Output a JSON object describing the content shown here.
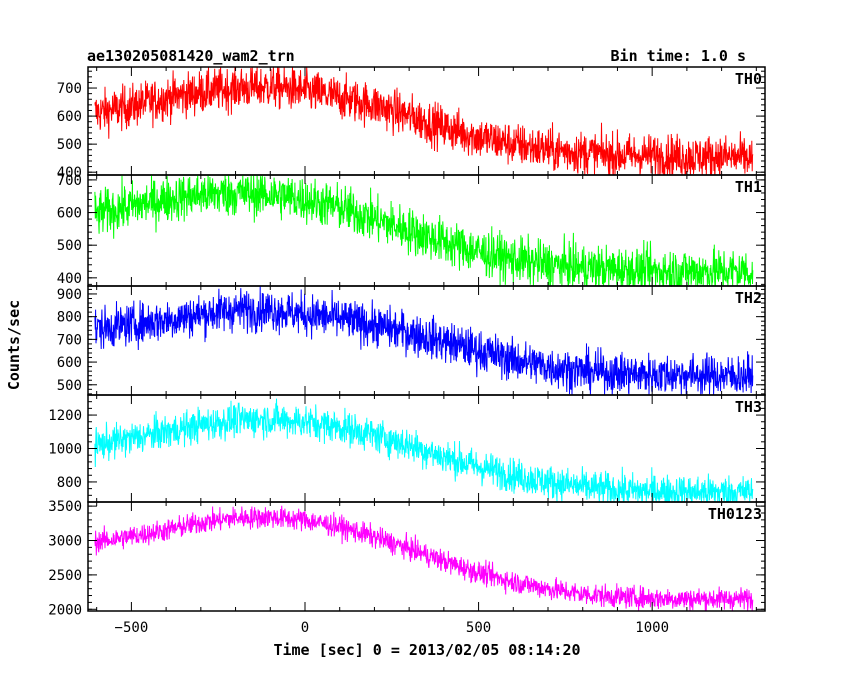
{
  "header": {
    "title": "ae130205081420_wam2_trn",
    "bin_time": "Bin time: 1.0 s"
  },
  "axes": {
    "xlabel": "Time [sec] 0 = 2013/02/05 08:14:20",
    "ylabel": "Counts/sec"
  },
  "chart_data": {
    "type": "line",
    "title": "ae130205081420_wam2_trn",
    "xlabel": "Time [sec] 0 = 2013/02/05 08:14:20",
    "ylabel": "Counts/sec",
    "xlim": [
      -625,
      1325
    ],
    "x_ticks": [
      -500,
      0,
      500,
      1000
    ],
    "x_tick_labels": [
      "−500",
      "0",
      "500",
      "1000"
    ],
    "x_range": [
      -605,
      1290
    ],
    "grid": false,
    "series": [
      {
        "name": "TH0",
        "color": "#ff0000",
        "ylim": [
          390,
          775
        ],
        "y_ticks": [
          400,
          500,
          600,
          700
        ],
        "noise": 38,
        "x": [
          -605,
          -500,
          -400,
          -300,
          -200,
          -100,
          0,
          100,
          200,
          300,
          400,
          500,
          600,
          700,
          800,
          900,
          1000,
          1100,
          1200,
          1290
        ],
        "values": [
          610,
          635,
          665,
          685,
          700,
          705,
          690,
          665,
          640,
          600,
          560,
          525,
          500,
          480,
          470,
          460,
          460,
          455,
          455,
          450
        ]
      },
      {
        "name": "TH1",
        "color": "#00ff00",
        "ylim": [
          375,
          715
        ],
        "y_ticks": [
          400,
          500,
          600,
          700
        ],
        "noise": 35,
        "x": [
          -605,
          -500,
          -400,
          -300,
          -200,
          -100,
          0,
          100,
          200,
          300,
          400,
          500,
          600,
          700,
          800,
          900,
          1000,
          1100,
          1200,
          1290
        ],
        "values": [
          595,
          620,
          640,
          655,
          660,
          655,
          640,
          615,
          580,
          545,
          510,
          480,
          455,
          440,
          430,
          425,
          420,
          420,
          420,
          420
        ]
      },
      {
        "name": "TH2",
        "color": "#0000ff",
        "ylim": [
          455,
          935
        ],
        "y_ticks": [
          500,
          600,
          700,
          800,
          900
        ],
        "noise": 45,
        "x": [
          -605,
          -500,
          -400,
          -300,
          -200,
          -100,
          0,
          100,
          200,
          300,
          400,
          500,
          600,
          700,
          800,
          900,
          1000,
          1100,
          1200,
          1290
        ],
        "values": [
          745,
          765,
          785,
          810,
          830,
          830,
          810,
          790,
          760,
          730,
          690,
          650,
          610,
          580,
          560,
          550,
          545,
          545,
          540,
          540
        ]
      },
      {
        "name": "TH3",
        "color": "#00ffff",
        "ylim": [
          680,
          1320
        ],
        "y_ticks": [
          800,
          1000,
          1200
        ],
        "noise": 50,
        "x": [
          -605,
          -500,
          -400,
          -300,
          -200,
          -100,
          0,
          100,
          200,
          300,
          400,
          500,
          600,
          700,
          800,
          900,
          1000,
          1100,
          1200,
          1290
        ],
        "values": [
          1020,
          1060,
          1100,
          1140,
          1170,
          1175,
          1160,
          1130,
          1080,
          1020,
          950,
          890,
          840,
          800,
          770,
          750,
          745,
          740,
          740,
          740
        ]
      },
      {
        "name": "TH0123",
        "color": "#ff00ff",
        "ylim": [
          1975,
          3560
        ],
        "y_ticks": [
          2000,
          2500,
          3000,
          3500
        ],
        "noise": 80,
        "x": [
          -605,
          -500,
          -400,
          -300,
          -200,
          -100,
          0,
          100,
          200,
          300,
          400,
          500,
          600,
          700,
          800,
          900,
          1000,
          1100,
          1200,
          1290
        ],
        "values": [
          2980,
          3060,
          3150,
          3260,
          3330,
          3340,
          3300,
          3200,
          3050,
          2880,
          2700,
          2530,
          2400,
          2300,
          2220,
          2180,
          2160,
          2150,
          2150,
          2150
        ]
      }
    ]
  }
}
